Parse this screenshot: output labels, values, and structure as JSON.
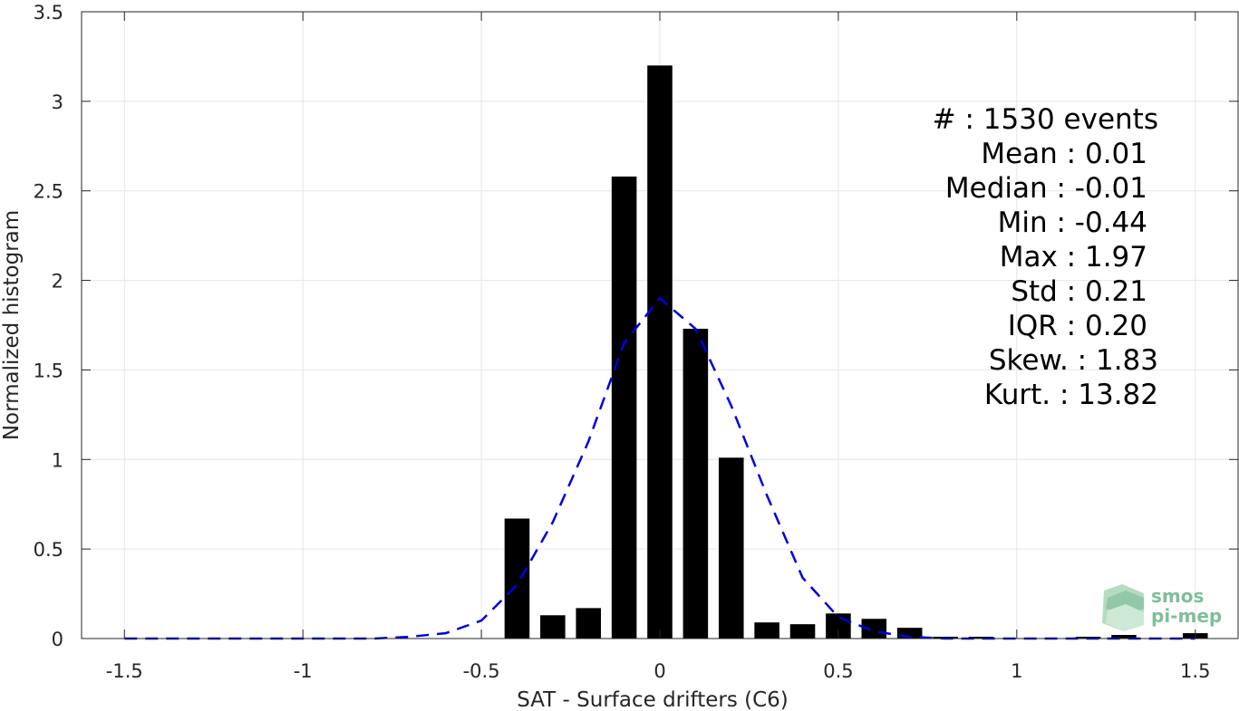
{
  "chart_data": {
    "type": "bar",
    "xlabel": "SAT - Surface drifters (C6)",
    "ylabel": "Normalized histogram",
    "xlim": [
      -1.62,
      1.62
    ],
    "ylim": [
      0,
      3.5
    ],
    "grid": true,
    "x_ticks": [
      -1.5,
      -1,
      -0.5,
      0,
      0.5,
      1,
      1.5
    ],
    "x_tick_labels": [
      "-1.5",
      "-1",
      "-0.5",
      "0",
      "0.5",
      "1",
      "1.5"
    ],
    "y_ticks": [
      0,
      0.5,
      1,
      1.5,
      2,
      2.5,
      3,
      3.5
    ],
    "y_tick_labels": [
      "0",
      "0.5",
      "1",
      "1.5",
      "2",
      "2.5",
      "3",
      "3.5"
    ],
    "bar_width": 0.07,
    "series": [
      {
        "kind": "bar",
        "color": "#000000",
        "x": [
          -0.4,
          -0.3,
          -0.2,
          -0.1,
          0.0,
          0.1,
          0.2,
          0.3,
          0.4,
          0.5,
          0.6,
          0.7,
          0.8,
          0.9,
          1.0,
          1.1,
          1.2,
          1.3,
          1.4,
          1.5
        ],
        "values": [
          0.67,
          0.13,
          0.17,
          2.58,
          3.2,
          1.73,
          1.01,
          0.09,
          0.08,
          0.14,
          0.11,
          0.06,
          0.01,
          0.01,
          0.0,
          0.0,
          0.01,
          0.02,
          0.0,
          0.03
        ]
      },
      {
        "kind": "line",
        "style": "dashed",
        "color": "#0000e0",
        "x": [
          -1.5,
          -1.4,
          -1.3,
          -1.2,
          -1.1,
          -1.0,
          -0.9,
          -0.8,
          -0.7,
          -0.6,
          -0.5,
          -0.4,
          -0.3,
          -0.2,
          -0.1,
          0.0,
          0.1,
          0.2,
          0.3,
          0.4,
          0.5,
          0.6,
          0.7,
          0.8,
          0.9,
          1.0,
          1.1,
          1.2,
          1.3,
          1.4,
          1.5
        ],
        "values": [
          0,
          0,
          0,
          0,
          0,
          0,
          0,
          0,
          0.01,
          0.03,
          0.1,
          0.3,
          0.65,
          1.1,
          1.65,
          1.9,
          1.73,
          1.3,
          0.8,
          0.34,
          0.12,
          0.04,
          0.01,
          0,
          0,
          0,
          0,
          0,
          0,
          0,
          0
        ]
      }
    ],
    "annotations": [
      "#  : 1530 events",
      "Mean : 0.01",
      "Median : -0.01",
      "Min : -0.44",
      "Max : 1.97",
      "Std : 0.21",
      "IQR : 0.20",
      "Skew. : 1.83",
      "Kurt. : 13.82"
    ],
    "logo": {
      "line1": "smos",
      "line2": "pi-mep",
      "color": "#7fbf9a"
    }
  }
}
